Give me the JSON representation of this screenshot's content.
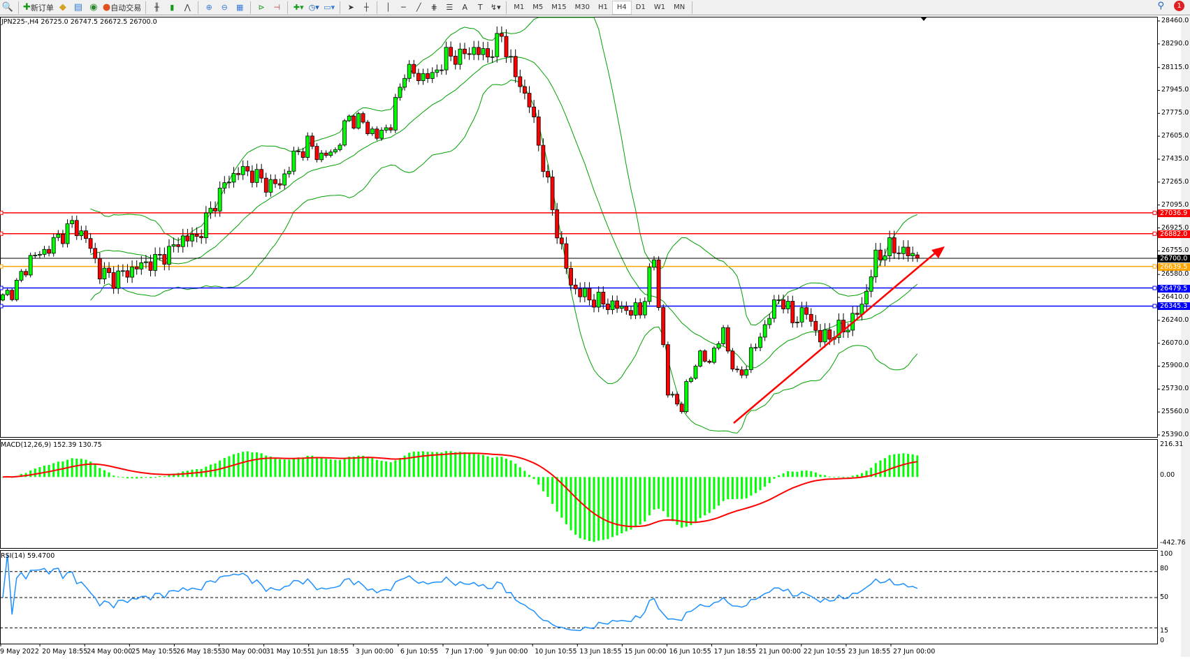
{
  "toolbar": {
    "new_order": "新订单",
    "auto_trading": "自动交易",
    "icons": [
      "zoom-icon",
      "new-order-icon",
      "gold-icon",
      "market-watch-icon",
      "signal-icon",
      "auto-trading-icon",
      "bar-chart-icon",
      "candlestick-icon",
      "line-chart-icon",
      "zoom-in-icon",
      "zoom-out-icon",
      "tile-icon",
      "autoscroll-icon",
      "chart-shift-icon",
      "indicators-icon",
      "period-icon",
      "templates-icon",
      "cursor-icon",
      "crosshair-icon",
      "vertical-line-icon",
      "horizontal-line-icon",
      "trendline-icon",
      "fibonacci-icon",
      "fibo-lines-icon",
      "text-icon",
      "label-icon",
      "arrows-icon"
    ],
    "timeframes": [
      "M1",
      "M5",
      "M15",
      "M30",
      "H1",
      "H4",
      "D1",
      "W1",
      "MN"
    ],
    "active_timeframe": "H4",
    "notification_count": "1"
  },
  "chart": {
    "symbol_info": "JPN225-,H4  26725.0 26747.5 26672.5 26700.0",
    "price_axis": [
      "28460.0",
      "28290.0",
      "28115.0",
      "27945.0",
      "27775.0",
      "27605.0",
      "27435.0",
      "27265.0",
      "27095.0",
      "26925.0",
      "26755.0",
      "26580.0",
      "26410.0",
      "26240.0",
      "26070.0",
      "25900.0",
      "25730.0",
      "25560.0",
      "25390.0"
    ],
    "lines": [
      {
        "price": 27036.9,
        "label": "27036.9",
        "color": "#ff0000"
      },
      {
        "price": 26882.0,
        "label": "26882.0",
        "color": "#ff0000"
      },
      {
        "price": 26700.0,
        "label": "26700.0",
        "color": "#000000"
      },
      {
        "price": 26639.5,
        "label": "26639.5",
        "color": "#ffa500"
      },
      {
        "price": 26479.5,
        "label": "26479.5",
        "color": "#0000ff"
      },
      {
        "price": 26345.3,
        "label": "26345.3",
        "color": "#0000ff"
      }
    ],
    "time_axis": [
      "9 May 2022",
      "20 May 18:55",
      "24 May 00:00",
      "25 May 10:55",
      "26 May 18:55",
      "30 May 00:00",
      "31 May 10:55",
      "1 Jun 18:55",
      "3 Jun 00:00",
      "6 Jun 10:55",
      "7 Jun 17:00",
      "9 Jun 00:00",
      "10 Jun 10:55",
      "13 Jun 18:55",
      "15 Jun 00:00",
      "16 Jun 10:55",
      "17 Jun 18:55",
      "21 Jun 00:00",
      "22 Jun 10:55",
      "23 Jun 18:55",
      "27 Jun 00:00"
    ],
    "macd": {
      "label": "MACD(12,26,9) 152.39 130.75",
      "axis": [
        "216.31",
        "0.00",
        "-442.76"
      ],
      "hist_color": "#00ff00",
      "signal_color": "#ff0000"
    },
    "rsi": {
      "label": "RSI(14) 59.4700",
      "axis": [
        "100",
        "80",
        "50",
        "15",
        "0"
      ],
      "color": "#1e90ff"
    },
    "colors": {
      "bull": "#00ff00",
      "bear": "#ff0000",
      "bands": "#00a000",
      "trend_arrow": "#ff0000"
    }
  },
  "chart_data": {
    "type": "candlestick",
    "symbol": "JPN225-",
    "timeframe": "H4",
    "ylim": [
      25390,
      28460
    ],
    "sampled_closes": [
      26400,
      26500,
      26700,
      26750,
      26850,
      26950,
      26850,
      26600,
      26550,
      26600,
      26650,
      26680,
      26750,
      26850,
      26850,
      27050,
      27250,
      27350,
      27330,
      27250,
      27250,
      27450,
      27550,
      27450,
      27500,
      27750,
      27700,
      27600,
      27700,
      28100,
      28050,
      28050,
      28200,
      28200,
      28250,
      28200,
      28350,
      28050,
      27850,
      27400,
      26900,
      26500,
      26420,
      26380,
      26350,
      26320,
      26300,
      26700,
      25700,
      25600,
      25950,
      25950,
      26150,
      25800,
      25980,
      26200,
      26420,
      26250,
      26300,
      26100,
      26150,
      26200,
      26350,
      26700,
      26780,
      26750,
      26700
    ],
    "last": {
      "open": 26725.0,
      "high": 26747.5,
      "low": 26672.5,
      "close": 26700.0
    }
  }
}
